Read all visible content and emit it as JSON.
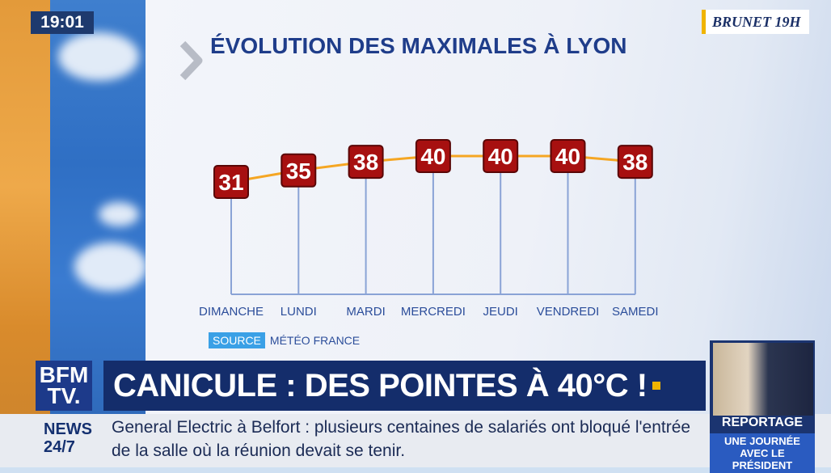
{
  "clock": "19:01",
  "brand": "BRUNET 19H",
  "chart_data": {
    "type": "line",
    "title": "ÉVOLUTION DES MAXIMALES À LYON",
    "categories": [
      "DIMANCHE",
      "LUNDI",
      "MARDI",
      "MERCREDI",
      "JEUDI",
      "VENDREDI",
      "SAMEDI"
    ],
    "values": [
      31,
      35,
      38,
      40,
      40,
      40,
      38
    ],
    "grid": false,
    "colors": {
      "line": "#f5a623",
      "label_bg": "#a71010",
      "axis": "#8aa3d6",
      "category": "#2b4d9a"
    }
  },
  "source": {
    "tag": "SOURCE",
    "text": "MÉTÉO FRANCE"
  },
  "banner": {
    "logo_line1": "BFM",
    "logo_line2": "TV.",
    "headline": "CANICULE : DES POINTES À 40°C !"
  },
  "ticker": {
    "label_line1": "NEWS",
    "label_line2": "24/7",
    "text": "General Electric à Belfort : plusieurs centaines de salariés ont bloqué l'entrée de la salle où la réunion devait se tenir."
  },
  "report": {
    "title": "REPORTAGE",
    "subtitle": "UNE JOURNÉE AVEC LE PRÉSIDENT"
  }
}
